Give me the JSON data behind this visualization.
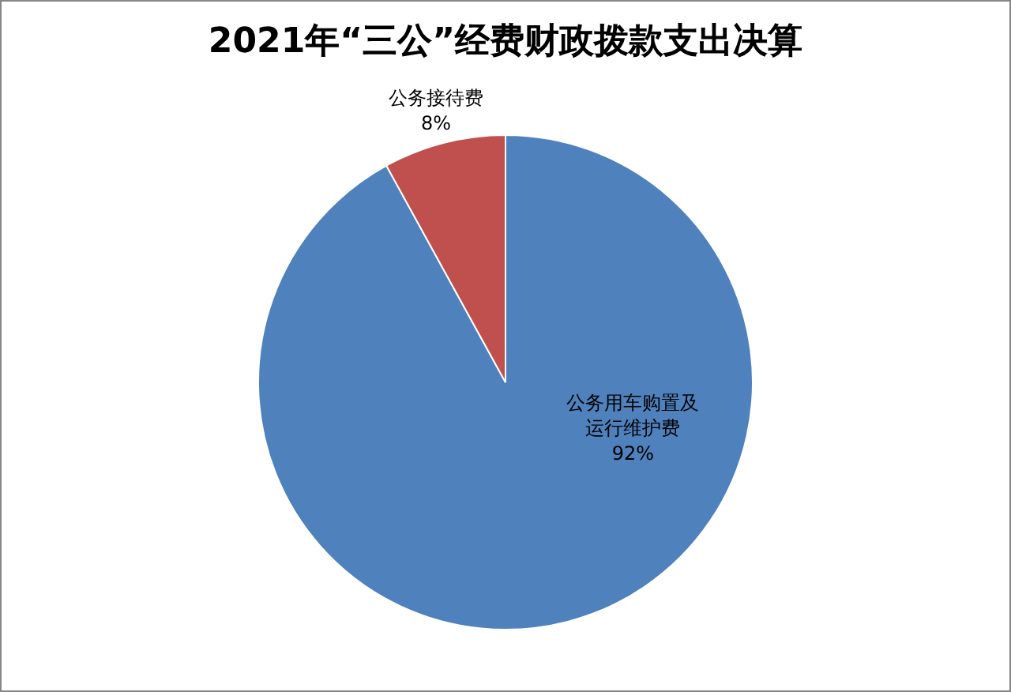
{
  "chart_data": {
    "type": "pie",
    "title": "2021年“三公”经费财政拨款支出决算",
    "categories": [
      "公务用车购置及运行维护费",
      "公务接待费"
    ],
    "values": [
      92,
      8
    ],
    "colors": [
      "#4f81bd",
      "#c0504d"
    ],
    "value_labels": [
      "92%",
      "8%"
    ],
    "legend": false
  }
}
